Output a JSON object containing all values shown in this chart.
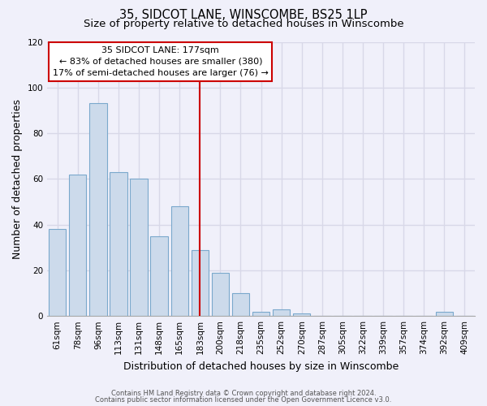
{
  "title": "35, SIDCOT LANE, WINSCOMBE, BS25 1LP",
  "subtitle": "Size of property relative to detached houses in Winscombe",
  "xlabel": "Distribution of detached houses by size in Winscombe",
  "ylabel": "Number of detached properties",
  "bar_color": "#ccdaeb",
  "bar_edge_color": "#7aa8cc",
  "background_color": "#f0f0fa",
  "grid_color": "#d8d8e8",
  "categories": [
    "61sqm",
    "78sqm",
    "96sqm",
    "113sqm",
    "131sqm",
    "148sqm",
    "165sqm",
    "183sqm",
    "200sqm",
    "218sqm",
    "235sqm",
    "252sqm",
    "270sqm",
    "287sqm",
    "305sqm",
    "322sqm",
    "339sqm",
    "357sqm",
    "374sqm",
    "392sqm",
    "409sqm"
  ],
  "values": [
    38,
    62,
    93,
    63,
    60,
    35,
    48,
    29,
    19,
    10,
    2,
    3,
    1,
    0,
    0,
    0,
    0,
    0,
    0,
    2,
    0
  ],
  "ylim": [
    0,
    120
  ],
  "yticks": [
    0,
    20,
    40,
    60,
    80,
    100,
    120
  ],
  "vline_x": 7.0,
  "vline_color": "#cc0000",
  "annotation_title": "35 SIDCOT LANE: 177sqm",
  "annotation_line1": "← 83% of detached houses are smaller (380)",
  "annotation_line2": "17% of semi-detached houses are larger (76) →",
  "annotation_box_color": "#ffffff",
  "annotation_box_edge": "#cc0000",
  "footer1": "Contains HM Land Registry data © Crown copyright and database right 2024.",
  "footer2": "Contains public sector information licensed under the Open Government Licence v3.0.",
  "title_fontsize": 10.5,
  "subtitle_fontsize": 9.5,
  "axis_label_fontsize": 9,
  "tick_fontsize": 7.5
}
